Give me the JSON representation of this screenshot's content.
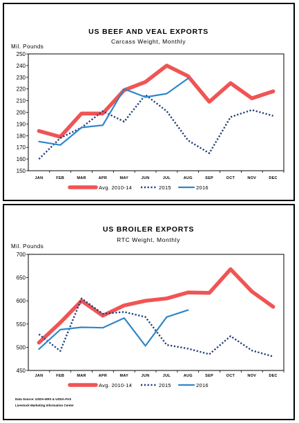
{
  "colors": {
    "avg": "#f05454",
    "y2015": "#1f3d7a",
    "y2016": "#2e86c9"
  },
  "chart_data": [
    {
      "type": "line",
      "title": "US BEEF AND VEAL EXPORTS",
      "subtitle": "Carcass Weight, Monthly",
      "ylabel": "Mil. Pounds",
      "ylim": [
        150,
        250
      ],
      "yticks": [
        150,
        160,
        170,
        180,
        190,
        200,
        210,
        220,
        230,
        240,
        250
      ],
      "categories": [
        "JAN",
        "FEB",
        "MAR",
        "APR",
        "MAY",
        "JUN",
        "JUL",
        "AUG",
        "SEP",
        "OCT",
        "NOV",
        "DEC"
      ],
      "legend_position": "bottom",
      "grid": false,
      "series": [
        {
          "name": "Avg. 2010-14",
          "style": "thick-solid",
          "values": [
            184,
            179,
            199,
            199,
            219,
            226,
            240,
            231,
            209,
            225,
            212,
            218
          ]
        },
        {
          "name": "2015",
          "style": "dotted",
          "values": [
            160,
            178,
            187,
            201,
            192,
            215,
            201,
            176,
            165,
            196,
            202,
            197
          ]
        },
        {
          "name": "2016",
          "style": "solid",
          "values": [
            175,
            172,
            187,
            189,
            220,
            213,
            216,
            229,
            null,
            null,
            null,
            null
          ]
        }
      ]
    },
    {
      "type": "line",
      "title": "US BROILER EXPORTS",
      "subtitle": "RTC Weight, Monthly",
      "ylabel": "Mil. Pounds",
      "ylim": [
        450,
        700
      ],
      "yticks": [
        450,
        500,
        550,
        600,
        650,
        700
      ],
      "categories": [
        "JAN",
        "FEB",
        "MAR",
        "APR",
        "MAY",
        "JUN",
        "JUL",
        "AUG",
        "SEP",
        "OCT",
        "NOV",
        "DEC"
      ],
      "legend_position": "bottom",
      "grid": false,
      "series": [
        {
          "name": "Avg. 2010-14",
          "style": "thick-solid",
          "values": [
            510,
            553,
            600,
            568,
            590,
            600,
            605,
            618,
            617,
            668,
            620,
            587
          ]
        },
        {
          "name": "2015",
          "style": "dotted",
          "values": [
            528,
            492,
            605,
            572,
            576,
            565,
            505,
            497,
            485,
            524,
            493,
            480
          ]
        },
        {
          "name": "2016",
          "style": "solid",
          "values": [
            496,
            538,
            543,
            542,
            563,
            503,
            565,
            580,
            null,
            null,
            null,
            null
          ]
        }
      ]
    }
  ],
  "notes": {
    "source": "Data Source: USDA-ERS & USDA-FAS",
    "center": "Livestock Marketing Information Center"
  }
}
